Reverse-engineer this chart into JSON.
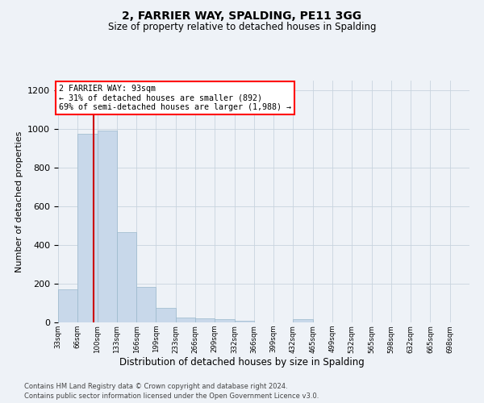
{
  "title": "2, FARRIER WAY, SPALDING, PE11 3GG",
  "subtitle": "Size of property relative to detached houses in Spalding",
  "xlabel": "Distribution of detached houses by size in Spalding",
  "ylabel": "Number of detached properties",
  "footer_line1": "Contains HM Land Registry data © Crown copyright and database right 2024.",
  "footer_line2": "Contains public sector information licensed under the Open Government Licence v3.0.",
  "property_size": 93,
  "annotation_line1": "2 FARRIER WAY: 93sqm",
  "annotation_line2": "← 31% of detached houses are smaller (892)",
  "annotation_line3": "69% of semi-detached houses are larger (1,988) →",
  "bar_color": "#c8d8ea",
  "bar_edge_color": "#9ab8cc",
  "redline_color": "#cc0000",
  "background_color": "#eef2f7",
  "grid_color": "#c8d4de",
  "categories": [
    "33sqm",
    "66sqm",
    "100sqm",
    "133sqm",
    "166sqm",
    "199sqm",
    "233sqm",
    "266sqm",
    "299sqm",
    "332sqm",
    "366sqm",
    "399sqm",
    "432sqm",
    "465sqm",
    "499sqm",
    "532sqm",
    "565sqm",
    "598sqm",
    "632sqm",
    "665sqm",
    "698sqm"
  ],
  "values": [
    170,
    975,
    990,
    465,
    185,
    75,
    25,
    20,
    15,
    10,
    0,
    0,
    15,
    0,
    0,
    0,
    0,
    0,
    0,
    0,
    0
  ],
  "bin_width": 33,
  "bin_starts": [
    33,
    66,
    99,
    132,
    165,
    198,
    231,
    264,
    297,
    330,
    363,
    396,
    429,
    462,
    495,
    528,
    561,
    594,
    627,
    660,
    693
  ],
  "xlim": [
    33,
    726
  ],
  "ylim": [
    0,
    1250
  ],
  "yticks": [
    0,
    200,
    400,
    600,
    800,
    1000,
    1200
  ]
}
